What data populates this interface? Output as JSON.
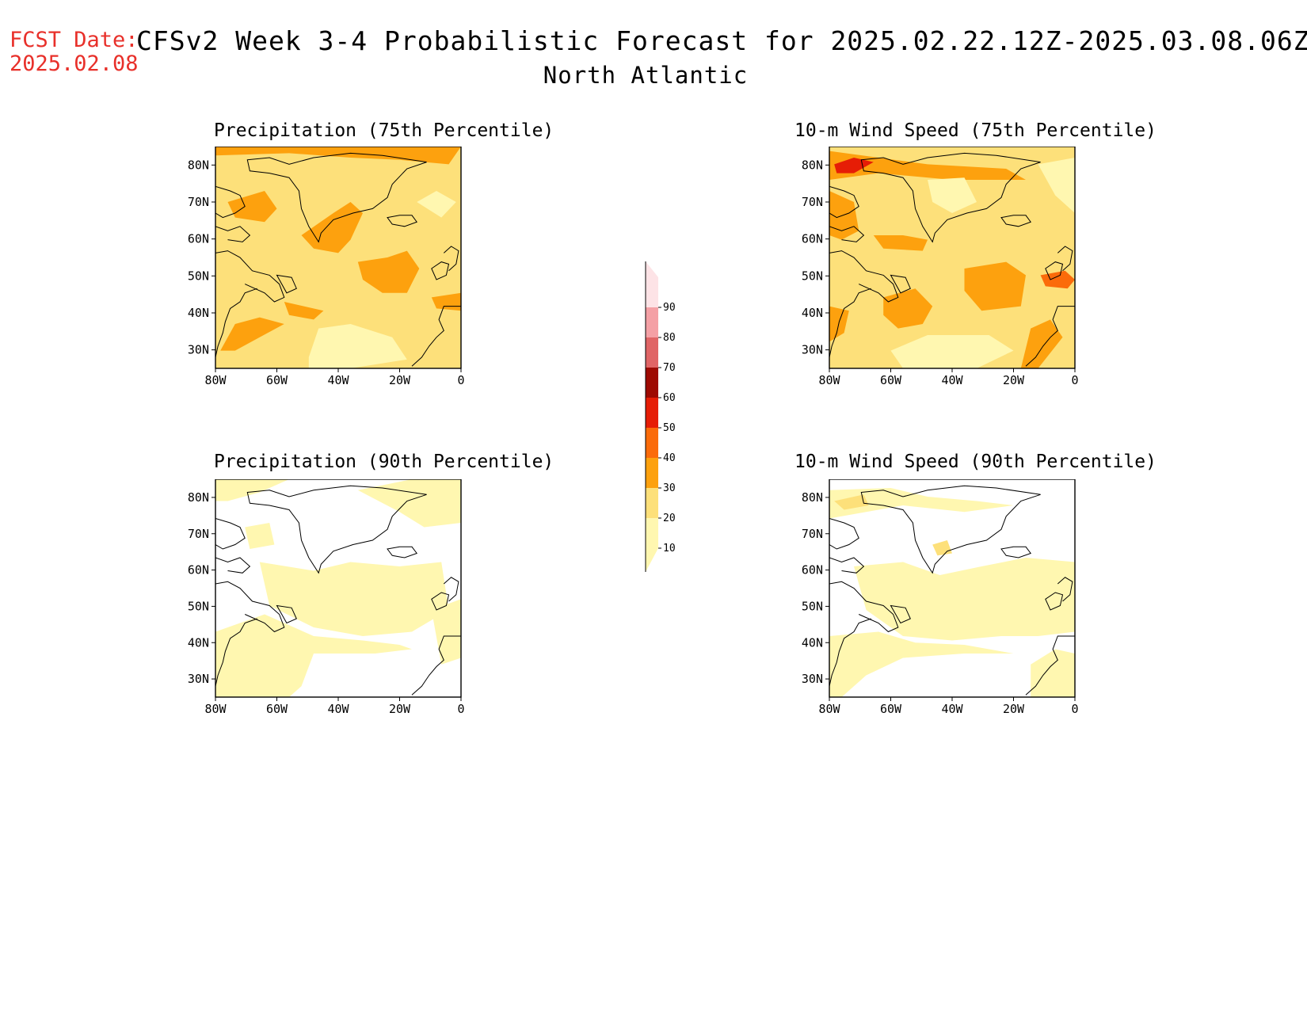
{
  "header": {
    "fcst_label": "FCST Date:",
    "fcst_date": "2025.02.08",
    "title": "CFSv2 Week 3-4 Probabilistic Forecast for 2025.02.22.12Z-2025.03.08.06Z",
    "region": "North Atlantic"
  },
  "panels": [
    {
      "id": "p75",
      "title": "Precipitation (75th Percentile)"
    },
    {
      "id": "w75",
      "title": "10-m Wind Speed (75th Percentile)"
    },
    {
      "id": "p90",
      "title": "Precipitation (90th Percentile)"
    },
    {
      "id": "w90",
      "title": "10-m Wind Speed (90th Percentile)"
    }
  ],
  "axes": {
    "lat_labels": [
      "80N",
      "70N",
      "60N",
      "50N",
      "40N",
      "30N"
    ],
    "lon_labels": [
      "80W",
      "60W",
      "40W",
      "20W",
      "0"
    ]
  },
  "colorbar": {
    "levels": [
      "10",
      "20",
      "30",
      "40",
      "50",
      "60",
      "70",
      "80",
      "90"
    ],
    "colors": [
      "#fff7b0",
      "#fde07a",
      "#fda10e",
      "#fb6b0a",
      "#e61d06",
      "#9e0a02",
      "#e06566",
      "#f4a0a5",
      "#fde3e6"
    ]
  }
}
